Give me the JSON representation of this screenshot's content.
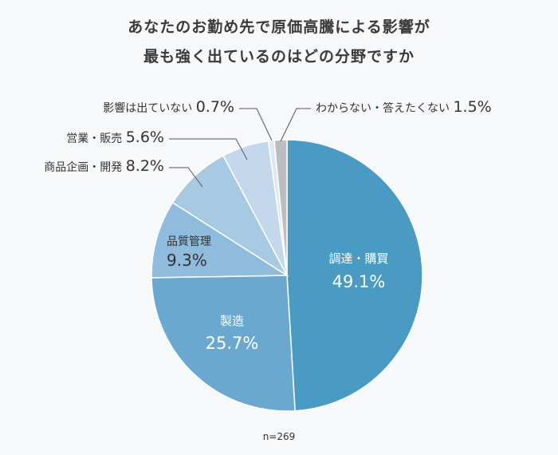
{
  "title_lines": [
    "あなたのお勤め先で原価高騰による影響が",
    "最も強く出ているのはどの分野ですか"
  ],
  "sample_note": "n=269",
  "chart_data": {
    "type": "pie",
    "title": "あなたのお勤め先で原価高騰による影響が最も強く出ているのはどの分野ですか",
    "unit": "%",
    "slices": [
      {
        "label": "調達・購買",
        "value": 49.1,
        "value_text": "49.1%",
        "color": "#4a9bc4"
      },
      {
        "label": "製造",
        "value": 25.7,
        "value_text": "25.7%",
        "color": "#6aa8cf"
      },
      {
        "label": "品質管理",
        "value": 9.3,
        "value_text": "9.3%",
        "color": "#8fbbdc"
      },
      {
        "label": "商品企画・開発",
        "value": 8.2,
        "value_text": "8.2%",
        "color": "#a8c9e2"
      },
      {
        "label": "営業・販売",
        "value": 5.6,
        "value_text": "5.6%",
        "color": "#c3d8ea"
      },
      {
        "label": "影響は出ていない",
        "value": 0.7,
        "value_text": "0.7%",
        "color": "#dce8f3"
      },
      {
        "label": "わからない・答えたくない",
        "value": 1.5,
        "value_text": "1.5%",
        "color": "#bdbdbd"
      }
    ]
  }
}
